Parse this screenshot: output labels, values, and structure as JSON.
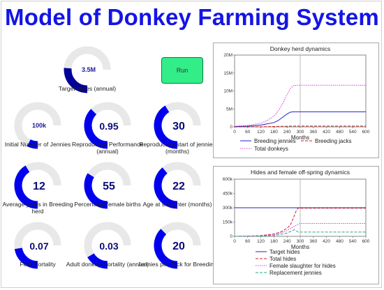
{
  "app_title": "Model of Donkey Farming System",
  "run_label": "Run",
  "colors": {
    "title": "#1414e6",
    "gauge_fill": "#0000ee",
    "gauge_dark": "#000099",
    "gauge_track": "#e8e8e8",
    "run_button": "#33ee88"
  },
  "gauges": [
    {
      "id": "target-hides",
      "label": "Target Hides (annual)",
      "value": "3.5M",
      "fraction": 0.35,
      "dark": true
    },
    {
      "id": "initial-jennies",
      "label": "Initial Number of Jennies",
      "value": "100k",
      "fraction": 0.1
    },
    {
      "id": "repro-performance",
      "label": "Reproductive Performance (annual)",
      "value": "0.95",
      "fraction": 0.5
    },
    {
      "id": "repro-start",
      "label": "Reproduction start of jennies (months)",
      "value": "30",
      "fraction": 0.55
    },
    {
      "id": "years-breeding",
      "label": "Average years in Breeding herd",
      "value": "12",
      "fraction": 0.55
    },
    {
      "id": "pct-female",
      "label": "Percentage female births",
      "value": "55",
      "fraction": 0.45
    },
    {
      "id": "age-slaughter",
      "label": "Age at slaughter (months)",
      "value": "22",
      "fraction": 0.52
    },
    {
      "id": "foal-mortality",
      "label": "Foal Mortality",
      "value": "0.07",
      "fraction": 0.3
    },
    {
      "id": "adult-mortality",
      "label": "Adult donkey mortality (annual)",
      "value": "0.03",
      "fraction": 0.22
    },
    {
      "id": "jennies-per-jack",
      "label": "Jennies per Jack for Breeding",
      "value": "20",
      "fraction": 0.5
    }
  ],
  "chart_data": [
    {
      "type": "line",
      "title": "Donkey herd dynamics",
      "xlabel": "Months",
      "xlim": [
        0,
        600
      ],
      "ylim": [
        0,
        20000000
      ],
      "x_ticks": [
        "0",
        "60",
        "120",
        "180",
        "240",
        "300",
        "360",
        "420",
        "480",
        "540",
        "600"
      ],
      "y_ticks": [
        "0",
        "5M",
        "10M",
        "15M",
        "20M"
      ],
      "marker_x": 300,
      "series": [
        {
          "name": "Breeding jennies",
          "color": "#2222cc",
          "style": "solid",
          "x": [
            0,
            60,
            120,
            180,
            200,
            220,
            240,
            255,
            270,
            600
          ],
          "y": [
            100000,
            200000,
            500000,
            1200000,
            1800000,
            2700000,
            3600000,
            4100000,
            4200000,
            4200000
          ]
        },
        {
          "name": "Breeding jacks",
          "color": "#cc2222",
          "style": "dashed",
          "x": [
            0,
            120,
            240,
            270,
            600
          ],
          "y": [
            5000,
            25000,
            180000,
            210000,
            210000
          ]
        },
        {
          "name": "Total donkeys",
          "color": "#dd33dd",
          "style": "dotted",
          "x": [
            0,
            60,
            120,
            150,
            180,
            200,
            220,
            240,
            255,
            270,
            285,
            600
          ],
          "y": [
            200000,
            400000,
            1000000,
            1800000,
            3000000,
            4500000,
            6500000,
            9000000,
            10700000,
            11500000,
            11600000,
            11600000
          ]
        }
      ]
    },
    {
      "type": "line",
      "title": "Hides and female off-spring dynamics",
      "xlabel": "Months",
      "xlim": [
        0,
        600
      ],
      "ylim": [
        0,
        600000
      ],
      "x_ticks": [
        "0",
        "60",
        "120",
        "180",
        "240",
        "300",
        "360",
        "420",
        "480",
        "540",
        "600"
      ],
      "y_ticks": [
        "0",
        "150k",
        "300k",
        "450k",
        "600k"
      ],
      "marker_x": 300,
      "series": [
        {
          "name": "Target hides",
          "color": "#2222cc",
          "style": "solid",
          "x": [
            0,
            600
          ],
          "y": [
            300000,
            300000
          ]
        },
        {
          "name": "Total hides",
          "color": "#cc2222",
          "style": "dashed",
          "x": [
            0,
            60,
            120,
            180,
            210,
            240,
            255,
            265,
            280,
            290,
            600
          ],
          "y": [
            0,
            2000,
            8000,
            25000,
            45000,
            85000,
            120000,
            170000,
            260000,
            295000,
            295000
          ]
        },
        {
          "name": "Female slaughter for hides",
          "color": "#dd33dd",
          "style": "dotted",
          "x": [
            0,
            120,
            180,
            210,
            240,
            260,
            280,
            300,
            600
          ],
          "y": [
            0,
            6000,
            18000,
            35000,
            60000,
            90000,
            115000,
            135000,
            135000
          ]
        },
        {
          "name": "Replacement jennies",
          "color": "#22aa88",
          "style": "dashed",
          "x": [
            0,
            120,
            180,
            210,
            240,
            260,
            275,
            290,
            600
          ],
          "y": [
            0,
            3000,
            10000,
            20000,
            35000,
            55000,
            70000,
            45000,
            45000
          ]
        }
      ]
    }
  ]
}
